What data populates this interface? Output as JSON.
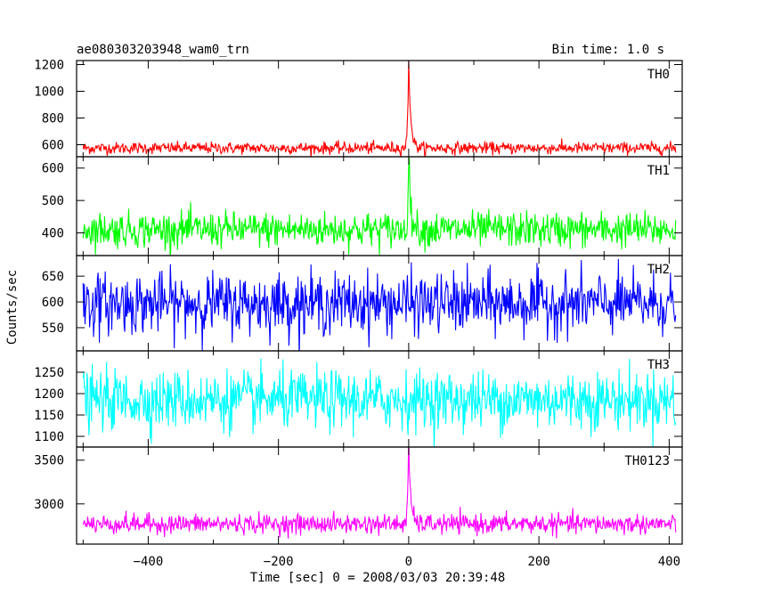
{
  "chart_data": {
    "type": "line",
    "title": "ae080303203948_wam0_trn",
    "subtitle": "Bin time: 1.0 s",
    "xlabel": "Time [sec] 0 = 2008/03/03 20:39:48",
    "ylabel": "Counts/sec",
    "xlim": [
      -510,
      420
    ],
    "x_ticks": [
      -400,
      -200,
      0,
      200,
      400
    ],
    "x_tick_labels": [
      "−400",
      "−200",
      "0",
      "200",
      "400"
    ],
    "grid": false,
    "panels": [
      {
        "name": "TH0",
        "color": "#ff0000",
        "ylim": [
          510,
          1230
        ],
        "y_ticks": [
          600,
          800,
          1000,
          1200
        ],
        "baseline": 575,
        "noise_sd": 22,
        "peak": 1230,
        "x_start": -500,
        "x_end": 410
      },
      {
        "name": "TH1",
        "color": "#00ff00",
        "ylim": [
          330,
          635
        ],
        "y_ticks": [
          400,
          500,
          600
        ],
        "baseline": 410,
        "noise_sd": 27,
        "peak": 625,
        "x_start": -500,
        "x_end": 410
      },
      {
        "name": "TH2",
        "color": "#0000ff",
        "ylim": [
          505,
          690
        ],
        "y_ticks": [
          550,
          600,
          650
        ],
        "baseline": 597,
        "noise_sd": 29,
        "peak": 0,
        "x_start": -500,
        "x_end": 410
      },
      {
        "name": "TH3",
        "color": "#00ffff",
        "ylim": [
          1075,
          1300
        ],
        "y_ticks": [
          1100,
          1150,
          1200,
          1250
        ],
        "baseline": 1185,
        "noise_sd": 34,
        "peak": 0,
        "x_start": -500,
        "x_end": 410
      },
      {
        "name": "TH0123",
        "color": "#ff00ff",
        "ylim": [
          2540,
          3650
        ],
        "y_ticks": [
          3000,
          3500
        ],
        "baseline": 2770,
        "noise_sd": 55,
        "peak": 3650,
        "x_start": -500,
        "x_end": 410
      }
    ]
  }
}
